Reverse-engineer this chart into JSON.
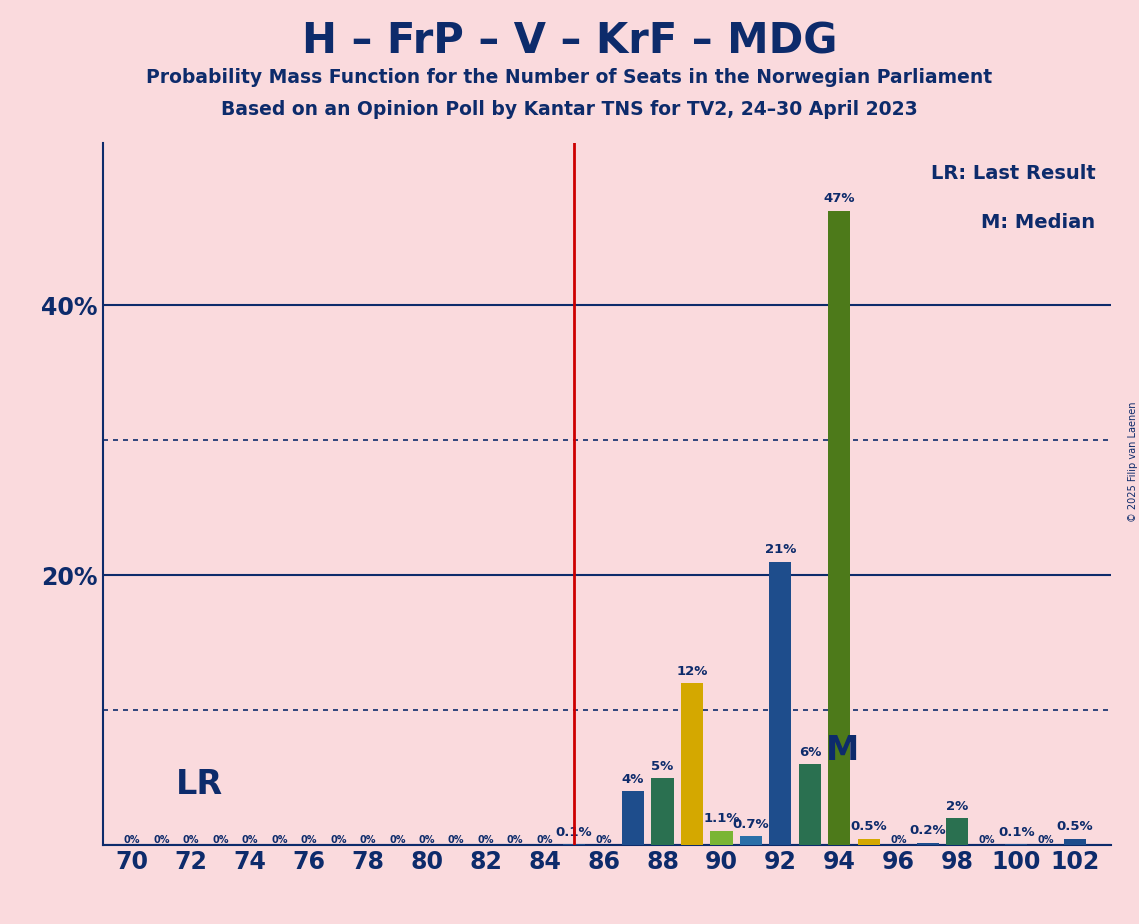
{
  "title": "H – FrP – V – KrF – MDG",
  "subtitle1": "Probability Mass Function for the Number of Seats in the Norwegian Parliament",
  "subtitle2": "Based on an Opinion Poll by Kantar TNS for TV2, 24–30 April 2023",
  "copyright": "© 2025 Filip van Laenen",
  "seats": [
    70,
    71,
    72,
    73,
    74,
    75,
    76,
    77,
    78,
    79,
    80,
    81,
    82,
    83,
    84,
    85,
    86,
    87,
    88,
    89,
    90,
    91,
    92,
    93,
    94,
    95,
    96,
    97,
    98,
    99,
    100,
    101,
    102
  ],
  "probabilities": [
    0.0,
    0.0,
    0.0,
    0.0,
    0.0,
    0.0,
    0.0,
    0.0,
    0.0,
    0.0,
    0.0,
    0.0,
    0.0,
    0.0,
    0.0,
    0.1,
    0.0,
    4.0,
    5.0,
    12.0,
    1.1,
    0.7,
    21.0,
    6.0,
    47.0,
    0.5,
    0.0,
    0.2,
    2.0,
    0.0,
    0.1,
    0.0,
    0.5
  ],
  "bar_colors": [
    "#1e4d8c",
    "#1e4d8c",
    "#1e4d8c",
    "#1e4d8c",
    "#1e4d8c",
    "#1e4d8c",
    "#1e4d8c",
    "#1e4d8c",
    "#1e4d8c",
    "#1e4d8c",
    "#1e4d8c",
    "#1e4d8c",
    "#1e4d8c",
    "#1e4d8c",
    "#1e4d8c",
    "#1e4d8c",
    "#1e4d8c",
    "#1e4d8c",
    "#2a7050",
    "#d4a800",
    "#7ab534",
    "#2a6fa8",
    "#1e4d8c",
    "#2a7050",
    "#4d7a1a",
    "#d4a800",
    "#1e4d8c",
    "#1e4d8c",
    "#2a7050",
    "#1e4d8c",
    "#1e4d8c",
    "#1e4d8c",
    "#1e4d8c"
  ],
  "last_result_seat": 85,
  "median_seat": 93,
  "lr_label": "LR",
  "median_label": "M",
  "legend_lr": "LR: Last Result",
  "legend_m": "M: Median",
  "background_color": "#fadadd",
  "text_color": "#0d2b6b",
  "bar_label_fontsize": 9.5,
  "axis_tick_fontsize": 17,
  "solid_gridlines": [
    0,
    20,
    40
  ],
  "dotted_gridlines": [
    10,
    30
  ],
  "ytick_labeled": [
    20,
    40
  ],
  "ylim": [
    0,
    52
  ],
  "xlim": [
    69.0,
    103.2
  ],
  "bar_width": 0.75
}
